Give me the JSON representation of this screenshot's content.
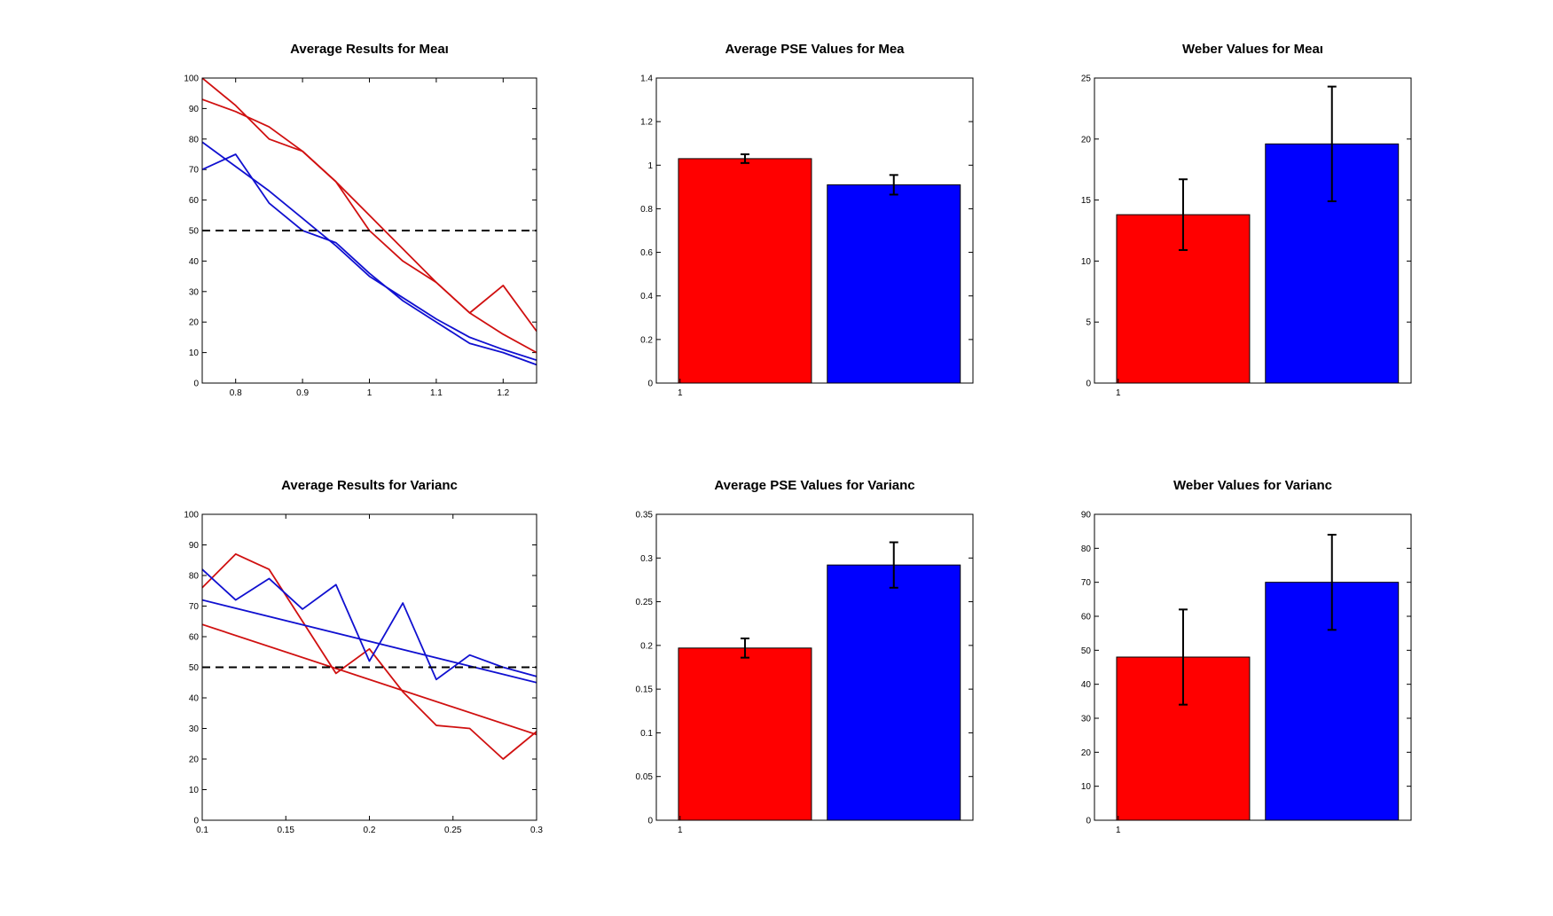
{
  "chart_data": [
    {
      "type": "line",
      "title": "Average Results for Meaı",
      "xlim": [
        0.75,
        1.25
      ],
      "ylim": [
        0,
        100
      ],
      "x_ticks": [
        0.8,
        0.9,
        1,
        1.1,
        1.2
      ],
      "x_tick_labels": [
        "0.8",
        "0.9",
        "1",
        "1.1",
        "1.2"
      ],
      "y_ticks": [
        0,
        10,
        20,
        30,
        40,
        50,
        60,
        70,
        80,
        90,
        100
      ],
      "y_tick_labels": [
        "0",
        "10",
        "20",
        "30",
        "40",
        "50",
        "60",
        "70",
        "80",
        "90",
        "100"
      ],
      "grid": false,
      "series": [
        {
          "color": "#d01010",
          "kind": "data",
          "x": [
            0.75,
            0.8,
            0.85,
            0.9,
            0.95,
            1.0,
            1.05,
            1.1,
            1.15,
            1.2,
            1.25
          ],
          "y": [
            100,
            91,
            80,
            76,
            66,
            50,
            40,
            33,
            23,
            32,
            17
          ]
        },
        {
          "color": "#d01010",
          "kind": "fit",
          "x": [
            0.75,
            0.8,
            0.85,
            0.9,
            0.95,
            1.0,
            1.05,
            1.1,
            1.15,
            1.2,
            1.25
          ],
          "y": [
            93,
            89,
            84,
            76,
            66,
            55,
            44,
            33,
            23,
            16,
            10
          ]
        },
        {
          "color": "#1010d0",
          "kind": "data",
          "x": [
            0.75,
            0.8,
            0.85,
            0.9,
            0.95,
            1.0,
            1.05,
            1.1,
            1.15,
            1.2,
            1.25
          ],
          "y": [
            70,
            75,
            59,
            50,
            46,
            36,
            27,
            20,
            13,
            10,
            6
          ]
        },
        {
          "color": "#1010d0",
          "kind": "fit",
          "x": [
            0.75,
            0.8,
            0.85,
            0.9,
            0.95,
            1.0,
            1.05,
            1.1,
            1.15,
            1.2,
            1.25
          ],
          "y": [
            79,
            71,
            63,
            54,
            45,
            35,
            28,
            21,
            15,
            11,
            7.5
          ]
        },
        {
          "color": "#000000",
          "kind": "reference",
          "dashed": true,
          "x": [
            0.75,
            1.25
          ],
          "y": [
            50,
            50
          ]
        }
      ]
    },
    {
      "type": "bar",
      "title": "Average PSE Values for Mea",
      "ylim": [
        0,
        1.4
      ],
      "y_ticks": [
        0,
        0.2,
        0.4,
        0.6,
        0.8,
        1,
        1.2,
        1.4
      ],
      "y_tick_labels": [
        "0",
        "0.2",
        "0.4",
        "0.6",
        "0.8",
        "1",
        "1.2",
        "1.4"
      ],
      "x_tick_label": "1",
      "values": [
        1.03,
        0.91
      ],
      "errors": [
        0.02,
        0.045
      ],
      "colors": [
        "#ff0000",
        "#0000ff"
      ]
    },
    {
      "type": "bar",
      "title": "Weber Values for Meaı",
      "ylim": [
        0,
        25
      ],
      "y_ticks": [
        0,
        5,
        10,
        15,
        20,
        25
      ],
      "y_tick_labels": [
        "0",
        "5",
        "10",
        "15",
        "20",
        "25"
      ],
      "x_tick_label": "1",
      "values": [
        13.8,
        19.6
      ],
      "errors": [
        2.9,
        4.7
      ],
      "colors": [
        "#ff0000",
        "#0000ff"
      ]
    },
    {
      "type": "line",
      "title": "Average Results for Varianc",
      "xlim": [
        0.1,
        0.3
      ],
      "ylim": [
        0,
        100
      ],
      "x_ticks": [
        0.1,
        0.15,
        0.2,
        0.25,
        0.3
      ],
      "x_tick_labels": [
        "0.1",
        "0.15",
        "0.2",
        "0.25",
        "0.3"
      ],
      "y_ticks": [
        0,
        10,
        20,
        30,
        40,
        50,
        60,
        70,
        80,
        90,
        100
      ],
      "y_tick_labels": [
        "0",
        "10",
        "20",
        "30",
        "40",
        "50",
        "60",
        "70",
        "80",
        "90",
        "100"
      ],
      "grid": false,
      "series": [
        {
          "color": "#d01010",
          "kind": "data",
          "x": [
            0.1,
            0.12,
            0.14,
            0.16,
            0.18,
            0.2,
            0.22,
            0.24,
            0.26,
            0.28,
            0.3
          ],
          "y": [
            76,
            87,
            82,
            65,
            48,
            56,
            42,
            31,
            30,
            20,
            29
          ]
        },
        {
          "color": "#d01010",
          "kind": "fit",
          "x": [
            0.1,
            0.3
          ],
          "y": [
            64,
            28
          ]
        },
        {
          "color": "#1010d0",
          "kind": "data",
          "x": [
            0.1,
            0.12,
            0.14,
            0.16,
            0.18,
            0.2,
            0.22,
            0.24,
            0.26,
            0.28,
            0.3
          ],
          "y": [
            82,
            72,
            79,
            69,
            77,
            52,
            71,
            46,
            54,
            50,
            47
          ]
        },
        {
          "color": "#1010d0",
          "kind": "fit",
          "x": [
            0.1,
            0.3
          ],
          "y": [
            72,
            45
          ]
        },
        {
          "color": "#000000",
          "kind": "reference",
          "dashed": true,
          "x": [
            0.1,
            0.3
          ],
          "y": [
            50,
            50
          ]
        }
      ]
    },
    {
      "type": "bar",
      "title": "Average PSE Values for Varianc",
      "ylim": [
        0,
        0.35
      ],
      "y_ticks": [
        0,
        0.05,
        0.1,
        0.15,
        0.2,
        0.25,
        0.3,
        0.35
      ],
      "y_tick_labels": [
        "0",
        "0.05",
        "0.1",
        "0.15",
        "0.2",
        "0.25",
        "0.3",
        "0.35"
      ],
      "x_tick_label": "1",
      "values": [
        0.197,
        0.292
      ],
      "errors": [
        0.011,
        0.026
      ],
      "colors": [
        "#ff0000",
        "#0000ff"
      ]
    },
    {
      "type": "bar",
      "title": "Weber Values for Varianc",
      "ylim": [
        0,
        90
      ],
      "y_ticks": [
        0,
        10,
        20,
        30,
        40,
        50,
        60,
        70,
        80,
        90
      ],
      "y_tick_labels": [
        "0",
        "10",
        "20",
        "30",
        "40",
        "50",
        "60",
        "70",
        "80",
        "90"
      ],
      "x_tick_label": "1",
      "values": [
        48,
        70
      ],
      "errors": [
        14,
        14
      ],
      "colors": [
        "#ff0000",
        "#0000ff"
      ]
    }
  ]
}
